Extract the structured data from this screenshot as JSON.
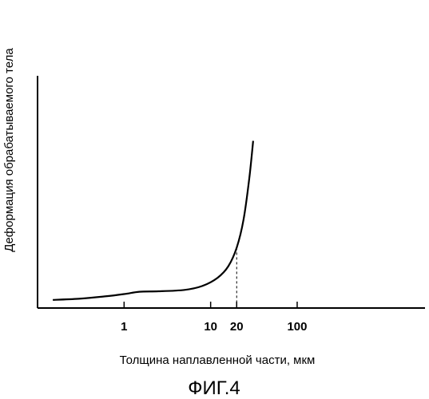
{
  "chart_data": {
    "type": "line",
    "x_scale": "log",
    "xlabel": "Толщина наплавленной части, мкм",
    "ylabel": "Деформация обрабатываемого тела",
    "xticks": [
      1,
      10,
      20,
      100
    ],
    "xtick_labels": [
      "1",
      "10",
      "20",
      "100"
    ],
    "xlim": [
      0.1,
      3000
    ],
    "ylim": [
      0,
      1
    ],
    "y_ticks_shown": false,
    "grid": false,
    "reference_line": {
      "x": 20,
      "style": "dashed"
    },
    "series": [
      {
        "x": [
          0.15,
          0.3,
          0.6,
          1.0,
          1.5,
          2.5,
          5,
          8,
          12,
          16,
          20,
          24,
          28,
          31
        ],
        "y": [
          0.035,
          0.04,
          0.05,
          0.06,
          0.07,
          0.072,
          0.078,
          0.095,
          0.13,
          0.18,
          0.26,
          0.38,
          0.56,
          0.72
        ]
      }
    ]
  },
  "caption": "ФИГ.4"
}
